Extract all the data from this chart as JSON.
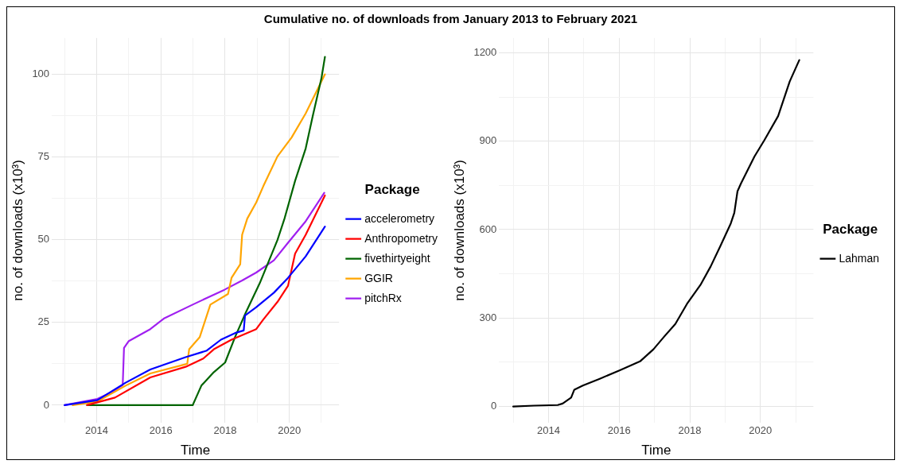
{
  "chart_data": [
    {
      "type": "line",
      "title": "Cumulative no. of downloads from January 2013 to February 2021",
      "xlabel": "Time",
      "ylabel": "no. of downloads (x10³)",
      "legend_title": "Package",
      "legend": "right",
      "grid": true,
      "line_style": "solid",
      "marker": "none",
      "xlim": [
        2012.6,
        2021.55
      ],
      "ylim": [
        -5.3,
        111
      ],
      "xticks": [
        {
          "value": 2013,
          "label": null
        },
        2014,
        {
          "value": 2015,
          "label": null
        },
        2016,
        {
          "value": 2017,
          "label": null
        },
        2018,
        {
          "value": 2019,
          "label": null
        },
        2020,
        {
          "value": 2021,
          "label": null
        }
      ],
      "yticks": [
        0,
        {
          "value": 12.5,
          "label": null
        },
        25,
        {
          "value": 37.5,
          "label": null
        },
        50,
        {
          "value": 62.5,
          "label": null
        },
        75,
        {
          "value": 87.5,
          "label": null
        },
        100
      ],
      "series": [
        {
          "name": "accelerometry",
          "color": "#0000ff",
          "x": [
            2013,
            2014.02,
            2014.9,
            2015.67,
            2016.77,
            2017.43,
            2017.87,
            2018.31,
            2018.58,
            2018.62,
            2018.97,
            2019.52,
            2019.96,
            2020.51,
            2021.11
          ],
          "values": [
            0,
            1.5,
            6.8,
            10.8,
            14.5,
            16.5,
            19.8,
            21.8,
            22.6,
            27.1,
            29.6,
            34,
            38.5,
            45,
            54
          ]
        },
        {
          "name": "Anthropometry",
          "color": "#ff0000",
          "x": [
            2013.7,
            2014.57,
            2015.67,
            2016.77,
            2017.32,
            2017.65,
            2018.2,
            2018.97,
            2019.19,
            2019.63,
            2019.96,
            2020.18,
            2020.51,
            2021.11
          ],
          "values": [
            0,
            2.3,
            8.4,
            11.6,
            14.1,
            16.9,
            19.8,
            23,
            25.9,
            31.2,
            36.1,
            45.8,
            51.5,
            63.4
          ]
        },
        {
          "name": "fivethirtyeight",
          "color": "#006400",
          "x": [
            2013.7,
            2016.99,
            2017.26,
            2017.65,
            2018,
            2018.31,
            2018.64,
            2019.08,
            2019.63,
            2019.85,
            2020.18,
            2020.51,
            2020.73,
            2021,
            2021.11
          ],
          "values": [
            0,
            0,
            5.9,
            10,
            12.9,
            20.6,
            27.9,
            36.9,
            49.9,
            56.4,
            67.8,
            77.6,
            87.4,
            98.8,
            105.3
          ]
        },
        {
          "name": "GGIR",
          "color": "#ffa500",
          "x": [
            2013.25,
            2014.02,
            2014.9,
            2015.67,
            2016.82,
            2016.88,
            2017.21,
            2017.54,
            2018.09,
            2018.2,
            2018.47,
            2018.53,
            2018.69,
            2018.97,
            2019.19,
            2019.63,
            2020.07,
            2020.51,
            2021.11
          ],
          "values": [
            0,
            1.1,
            5.9,
            9.6,
            12.5,
            16.9,
            20.6,
            30.4,
            33.6,
            38.5,
            42.6,
            51.5,
            56.4,
            61.3,
            66.2,
            75.2,
            80.9,
            88.2,
            100
          ]
        },
        {
          "name": "pitchRx",
          "color": "#a020f0",
          "x": [
            2013,
            2014.02,
            2014.46,
            2014.81,
            2014.85,
            2015,
            2015.67,
            2016.11,
            2016.99,
            2017.98,
            2018.53,
            2018.97,
            2019.52,
            2019.96,
            2020.51,
            2021.09
          ],
          "values": [
            0,
            1.9,
            3.9,
            6.1,
            17.3,
            19.4,
            23,
            26.3,
            30.4,
            34.9,
            37.7,
            40.1,
            43.8,
            49.1,
            55.6,
            64.2
          ]
        }
      ]
    },
    {
      "type": "line",
      "xlabel": "Time",
      "ylabel": "no. of downloads (x10³)",
      "legend_title": "Package",
      "legend": "right",
      "grid": true,
      "line_style": "solid",
      "marker": "none",
      "xlim": [
        2012.6,
        2021.5
      ],
      "ylim": [
        -55,
        1250
      ],
      "xticks": [
        {
          "value": 2013,
          "label": null
        },
        2014,
        {
          "value": 2015,
          "label": null
        },
        2016,
        {
          "value": 2017,
          "label": null
        },
        2018,
        {
          "value": 2019,
          "label": null
        },
        2020,
        {
          "value": 2021,
          "label": null
        }
      ],
      "yticks": [
        0,
        {
          "value": 150,
          "label": null
        },
        300,
        {
          "value": 450,
          "label": null
        },
        600,
        {
          "value": 750,
          "label": null
        },
        900,
        {
          "value": 1050,
          "label": null
        },
        1200
      ],
      "series": [
        {
          "name": "Lahman",
          "color": "#000000",
          "x": [
            2013,
            2013.59,
            2014.26,
            2014.4,
            2014.64,
            2014.73,
            2014.97,
            2015.45,
            2016.02,
            2016.59,
            2016.97,
            2017.26,
            2017.59,
            2017.92,
            2018.3,
            2018.59,
            2018.88,
            2019.16,
            2019.26,
            2019.35,
            2019.45,
            2019.83,
            2020.11,
            2020.5,
            2020.83,
            2021.1
          ],
          "values": [
            0,
            3,
            5,
            10,
            30,
            57,
            71,
            94,
            123,
            153,
            194,
            235,
            280,
            348,
            412,
            475,
            548,
            621,
            657,
            730,
            757,
            848,
            903,
            985,
            1103,
            1175
          ]
        }
      ]
    }
  ]
}
